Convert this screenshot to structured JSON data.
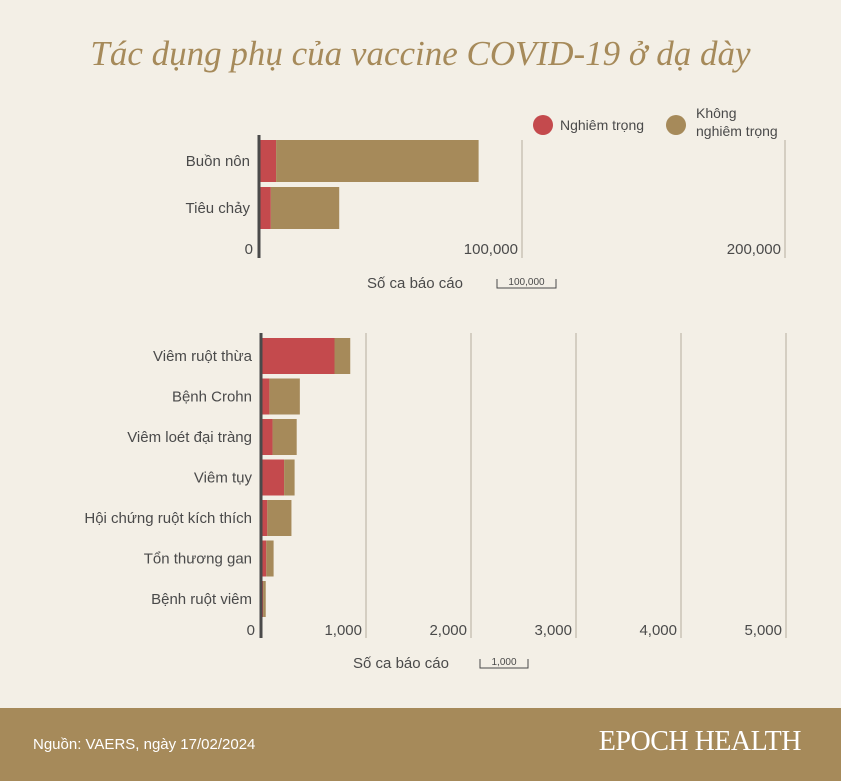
{
  "title": "Tác dụng phụ của vaccine COVID-19 ở dạ dày",
  "legend": {
    "serious": "Nghiêm trọng",
    "non_serious_line1": "Không",
    "non_serious_line2": "nghiêm trọng"
  },
  "colors": {
    "serious": "#c44a4d",
    "non_serious": "#a68a5a",
    "background": "#f3efe6",
    "footer": "#a68a5a"
  },
  "chart_data": [
    {
      "type": "bar",
      "orientation": "horizontal",
      "stacked": true,
      "categories": [
        "Buồn nôn",
        "Tiêu chảy"
      ],
      "series": [
        {
          "name": "Nghiêm trọng",
          "values": [
            6500,
            4500
          ]
        },
        {
          "name": "Không nghiêm trọng",
          "values": [
            77000,
            26000
          ]
        }
      ],
      "xlim": [
        0,
        200000
      ],
      "ticks": [
        0,
        100000,
        200000
      ],
      "tick_labels": [
        "0",
        "100,000",
        "200,000"
      ],
      "xlabel": "Số ca báo cáo",
      "scale_label": "100,000"
    },
    {
      "type": "bar",
      "orientation": "horizontal",
      "stacked": true,
      "categories": [
        "Viêm ruột thừa",
        "Bệnh Crohn",
        "Viêm loét đại tràng",
        "Viêm tụy",
        "Hội chứng ruột kích thích",
        "Tổn thương gan",
        "Bệnh ruột viêm"
      ],
      "series": [
        {
          "name": "Nghiêm trọng",
          "values": [
            700,
            80,
            110,
            220,
            60,
            50,
            20
          ]
        },
        {
          "name": "Không nghiêm trọng",
          "values": [
            150,
            290,
            230,
            100,
            230,
            70,
            25
          ]
        }
      ],
      "xlim": [
        0,
        5000
      ],
      "ticks": [
        0,
        1000,
        2000,
        3000,
        4000,
        5000
      ],
      "tick_labels": [
        "0",
        "1,000",
        "2,000",
        "3,000",
        "4,000",
        "5,000"
      ],
      "xlabel": "Số ca báo cáo",
      "scale_label": "1,000"
    }
  ],
  "footer": {
    "source": "Nguồn: VAERS, ngày 17/02/2024",
    "brand": "EPOCH HEALTH"
  }
}
